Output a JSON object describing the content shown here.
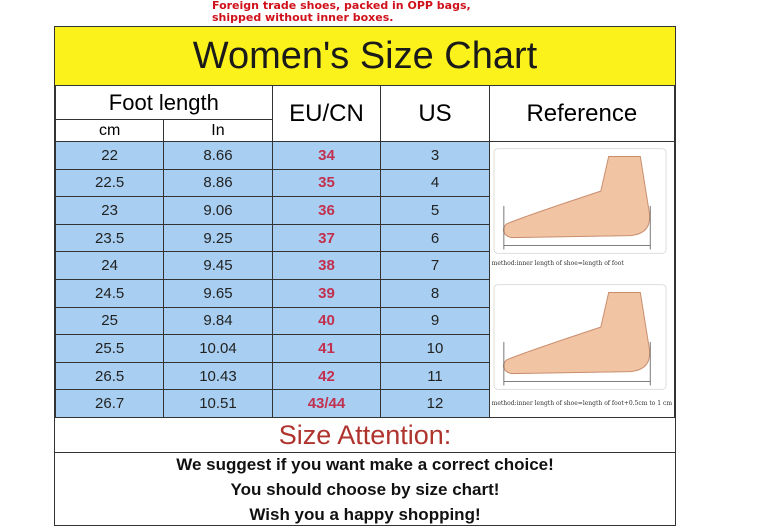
{
  "note": "Foreign trade shoes, packed in OPP bags, shipped without inner boxes.",
  "title": "Women's Size Chart",
  "headers": {
    "foot_length": "Foot length",
    "cm": "cm",
    "in": "In",
    "eu": "EU/CN",
    "us": "US",
    "reference": "Reference"
  },
  "rows": [
    {
      "cm": "22",
      "in": "8.66",
      "eu": "34",
      "us": "3"
    },
    {
      "cm": "22.5",
      "in": "8.86",
      "eu": "35",
      "us": "4"
    },
    {
      "cm": "23",
      "in": "9.06",
      "eu": "36",
      "us": "5"
    },
    {
      "cm": "23.5",
      "in": "9.25",
      "eu": "37",
      "us": "6"
    },
    {
      "cm": "24",
      "in": "9.45",
      "eu": "38",
      "us": "7"
    },
    {
      "cm": "24.5",
      "in": "9.65",
      "eu": "39",
      "us": "8"
    },
    {
      "cm": "25",
      "in": "9.84",
      "eu": "40",
      "us": "9"
    },
    {
      "cm": "25.5",
      "in": "10.04",
      "eu": "41",
      "us": "10"
    },
    {
      "cm": "26.5",
      "in": "10.43",
      "eu": "42",
      "us": "11"
    },
    {
      "cm": "26.7",
      "in": "10.51",
      "eu": "43/44",
      "us": "12"
    }
  ],
  "reference": {
    "caption1": "method:inner length of shoe=length of foot",
    "caption2": "method:inner length of shoe=length of foot+0.5cm to 1 cm"
  },
  "attention": "Size Attention:",
  "lines": [
    "We suggest if you want make a correct choice!",
    "You should choose by size chart!",
    "Wish you a happy shopping!"
  ]
}
